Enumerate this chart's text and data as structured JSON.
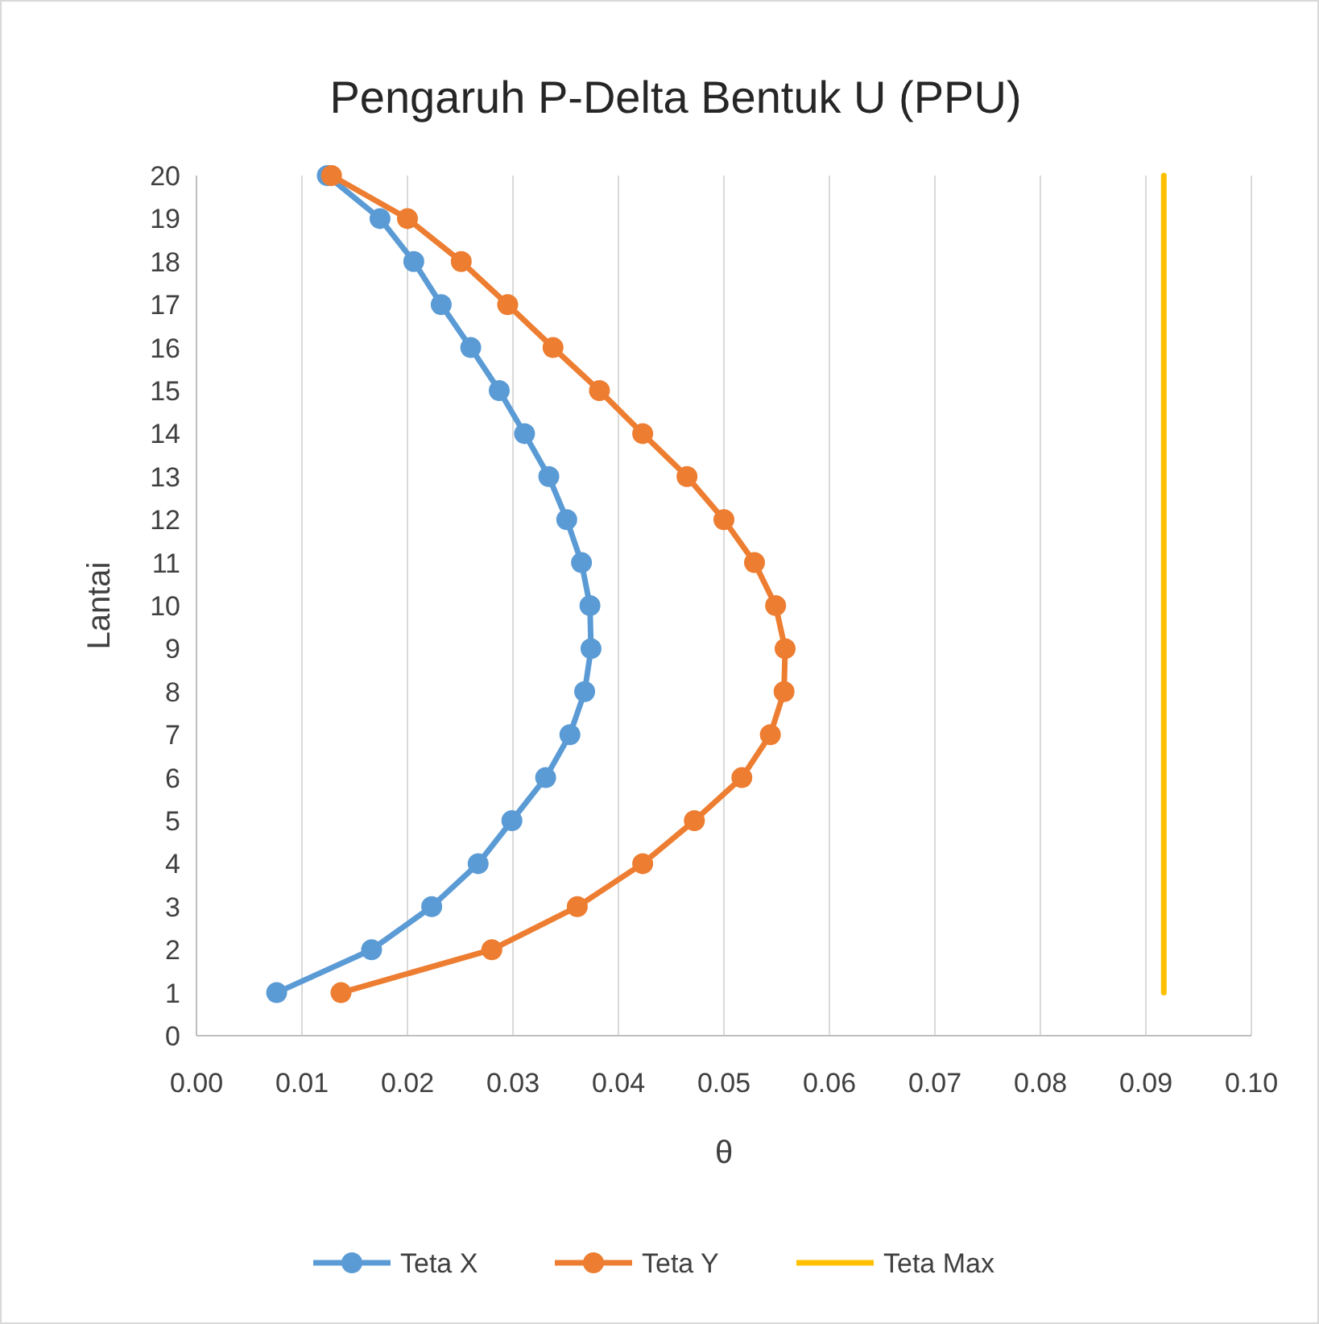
{
  "chart_data": {
    "type": "line",
    "title": "Pengaruh P-Delta Bentuk U (PPU)",
    "xlabel": "θ",
    "ylabel": "Lantai",
    "xlim": [
      0,
      0.1
    ],
    "xticks": [
      {
        "value": 0,
        "label": "0.00"
      },
      {
        "value": 0.01,
        "label": "0.01"
      },
      {
        "value": 0.02,
        "label": "0.02"
      },
      {
        "value": 0.03,
        "label": "0.03"
      },
      {
        "value": 0.04,
        "label": "0.04"
      },
      {
        "value": 0.05,
        "label": "0.05"
      },
      {
        "value": 0.06,
        "label": "0.06"
      },
      {
        "value": 0.07,
        "label": "0.07"
      },
      {
        "value": 0.08,
        "label": "0.08"
      },
      {
        "value": 0.09,
        "label": "0.09"
      },
      {
        "value": 0.1,
        "label": "0.10"
      }
    ],
    "ylim": [
      0,
      20
    ],
    "yticks": [
      0,
      1,
      2,
      3,
      4,
      5,
      6,
      7,
      8,
      9,
      10,
      11,
      12,
      13,
      14,
      15,
      16,
      17,
      18,
      19,
      20
    ],
    "grid": "x",
    "legend": "bottom",
    "series": [
      {
        "name": "Teta X",
        "color": "#5b9bd5",
        "marker": "circle",
        "x": [
          0.0076,
          0.0166,
          0.0223,
          0.0267,
          0.0299,
          0.0331,
          0.0354,
          0.0368,
          0.0374,
          0.0373,
          0.0365,
          0.0351,
          0.0334,
          0.0311,
          0.0287,
          0.026,
          0.0232,
          0.0206,
          0.0174,
          0.0124
        ],
        "values": [
          1,
          2,
          3,
          4,
          5,
          6,
          7,
          8,
          9,
          10,
          11,
          12,
          13,
          14,
          15,
          16,
          17,
          18,
          19,
          20
        ]
      },
      {
        "name": "Teta Y",
        "color": "#ed7d31",
        "marker": "circle",
        "x": [
          0.0137,
          0.028,
          0.0361,
          0.0423,
          0.0472,
          0.0517,
          0.0544,
          0.0557,
          0.0558,
          0.0549,
          0.0529,
          0.05,
          0.0465,
          0.0423,
          0.0382,
          0.0338,
          0.0295,
          0.0251,
          0.02,
          0.0128
        ],
        "values": [
          1,
          2,
          3,
          4,
          5,
          6,
          7,
          8,
          9,
          10,
          11,
          12,
          13,
          14,
          15,
          16,
          17,
          18,
          19,
          20
        ]
      },
      {
        "name": "Teta Max",
        "color": "#ffc000",
        "marker": "none",
        "x": [
          0.0917,
          0.0917
        ],
        "values": [
          1,
          20
        ]
      }
    ]
  }
}
